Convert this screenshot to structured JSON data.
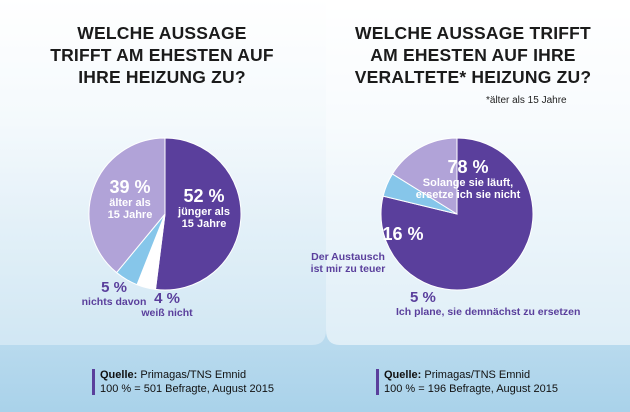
{
  "chart_data": [
    {
      "type": "pie",
      "title": "WELCHE AUSSAGE TRIFFT AM EHESTEN AUF IHRE HEIZUNG ZU?",
      "slices": [
        {
          "percent_label": "52 %",
          "value": 52,
          "label": "jünger als 15 Jahre",
          "color": "#5a3f9c"
        },
        {
          "percent_label": "4 %",
          "value": 4,
          "label": "weiß nicht",
          "color": "#ffffff"
        },
        {
          "percent_label": "5 %",
          "value": 5,
          "label": "nichts davon",
          "color": "#86c6ea"
        },
        {
          "percent_label": "39 %",
          "value": 39,
          "label": "älter als 15 Jahre",
          "color": "#b1a3d8"
        }
      ],
      "source_label": "Quelle:",
      "source": "Primagas/TNS Emnid",
      "base": "100 % = 501 Befragte, August 2015"
    },
    {
      "type": "pie",
      "title": "WELCHE AUSSAGE TRIFFT AM EHESTEN AUF IHRE VERALTETE* HEIZUNG ZU?",
      "note": "*älter als 15 Jahre",
      "slices": [
        {
          "percent_label": "78 %",
          "value": 78,
          "label": "Solange sie läuft, ersetze ich sie nicht",
          "color": "#5a3f9c"
        },
        {
          "percent_label": "5 %",
          "value": 5,
          "label": "Ich plane, sie demnächst zu ersetzen",
          "color": "#86c6ea"
        },
        {
          "percent_label": "16 %",
          "value": 16,
          "label": "Der Austausch ist mir zu teuer",
          "color": "#b1a3d8"
        }
      ],
      "source_label": "Quelle:",
      "source": "Primagas/TNS Emnid",
      "base": "100 % = 196 Befragte, August 2015"
    }
  ],
  "display": {
    "t1": [
      "WELCHE AUSSAGE",
      "TRIFFT AM EHESTEN AUF",
      "IHRE HEIZUNG ZU?"
    ],
    "t2": [
      "WELCHE AUSSAGE TRIFFT",
      "AM EHESTEN AUF IHRE",
      "VERALTETE* HEIZUNG ZU?"
    ],
    "p1_labels": {
      "a_pct": "52 %",
      "a_l1": "jünger als",
      "a_l2": "15 Jahre",
      "b_pct": "39 %",
      "b_l1": "älter als",
      "b_l2": "15 Jahre",
      "c_pct": "5 %",
      "c_l1": "nichts davon",
      "d_pct": "4 %",
      "d_l1": "weiß nicht"
    },
    "p2_labels": {
      "a_pct": "78 %",
      "a_l1": "Solange sie läuft,",
      "a_l2": "ersetze ich sie nicht",
      "b_pct": "16 %",
      "b_l1": "Der Austausch",
      "b_l2": "ist mir zu teuer",
      "c_pct": "5 %",
      "c_l1": "Ich plane, sie demnächst zu ersetzen"
    }
  }
}
